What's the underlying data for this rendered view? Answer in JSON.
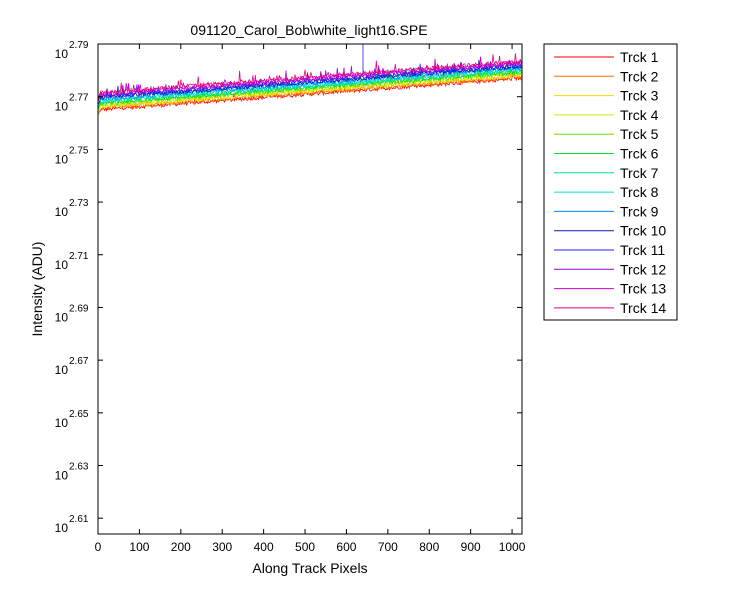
{
  "chart_data": {
    "type": "line",
    "title": "091120_Carol_Bob\\white_light16.SPE",
    "xlabel": "Along Track Pixels",
    "ylabel": "Intensity (ADU)",
    "xlim": [
      0,
      1024
    ],
    "ylim": [
      2.604,
      2.79
    ],
    "y_scale": "log10",
    "x_ticks": [
      0,
      100,
      200,
      300,
      400,
      500,
      600,
      700,
      800,
      900,
      1000
    ],
    "y_ticks": [
      {
        "base": "10",
        "exp": "2.61",
        "value": 2.61
      },
      {
        "base": "10",
        "exp": "2.63",
        "value": 2.63
      },
      {
        "base": "10",
        "exp": "2.65",
        "value": 2.65
      },
      {
        "base": "10",
        "exp": "2.67",
        "value": 2.67
      },
      {
        "base": "10",
        "exp": "2.69",
        "value": 2.69
      },
      {
        "base": "10",
        "exp": "2.71",
        "value": 2.71
      },
      {
        "base": "10",
        "exp": "2.73",
        "value": 2.73
      },
      {
        "base": "10",
        "exp": "2.75",
        "value": 2.75
      },
      {
        "base": "10",
        "exp": "2.77",
        "value": 2.77
      },
      {
        "base": "10",
        "exp": "2.79",
        "value": 2.79
      }
    ],
    "grid": false,
    "legend_position": "outside-right",
    "series": [
      {
        "name": "Trck 1",
        "color": "#ff0000",
        "start": 2.765,
        "end": 2.777
      },
      {
        "name": "Trck 2",
        "color": "#ff6a00",
        "start": 2.7655,
        "end": 2.7775
      },
      {
        "name": "Trck 3",
        "color": "#ffd500",
        "start": 2.766,
        "end": 2.778
      },
      {
        "name": "Trck 4",
        "color": "#c8f000",
        "start": 2.7665,
        "end": 2.7785
      },
      {
        "name": "Trck 5",
        "color": "#6ee000",
        "start": 2.767,
        "end": 2.779
      },
      {
        "name": "Trck 6",
        "color": "#00e02a",
        "start": 2.7675,
        "end": 2.7795
      },
      {
        "name": "Trck 7",
        "color": "#00e08a",
        "start": 2.768,
        "end": 2.78
      },
      {
        "name": "Trck 8",
        "color": "#00e0e0",
        "start": 2.7685,
        "end": 2.7805
      },
      {
        "name": "Trck 9",
        "color": "#0088ff",
        "start": 2.769,
        "end": 2.781
      },
      {
        "name": "Trck 10",
        "color": "#0022aa",
        "start": 2.7695,
        "end": 2.7815
      },
      {
        "name": "Trck 11",
        "color": "#2222ff",
        "start": 2.77,
        "end": 2.782
      },
      {
        "name": "Trck 12",
        "color": "#9900dd",
        "start": 2.7705,
        "end": 2.7825
      },
      {
        "name": "Trck 13",
        "color": "#cc00cc",
        "start": 2.771,
        "end": 2.783
      },
      {
        "name": "Trck 14",
        "color": "#ee0077",
        "start": 2.7715,
        "end": 2.7835
      }
    ]
  }
}
